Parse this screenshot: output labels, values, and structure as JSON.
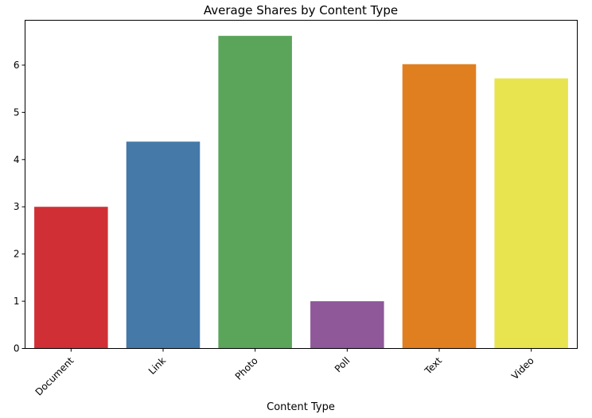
{
  "chart_data": {
    "type": "bar",
    "title": "Average Shares by Content Type",
    "xlabel": "Content Type",
    "ylabel": "",
    "categories": [
      "Document",
      "Link",
      "Photo",
      "Poll",
      "Text",
      "Video"
    ],
    "values": [
      3.0,
      4.38,
      6.62,
      1.0,
      6.02,
      5.72
    ],
    "colors": [
      "#d03035",
      "#4479a8",
      "#5ba55a",
      "#8e5899",
      "#e07f20",
      "#e8e450"
    ],
    "yticks": [
      "0",
      "1",
      "2",
      "3",
      "4",
      "5",
      "6"
    ],
    "ylim": [
      0,
      6.95
    ],
    "grid": false,
    "legend": "none"
  }
}
